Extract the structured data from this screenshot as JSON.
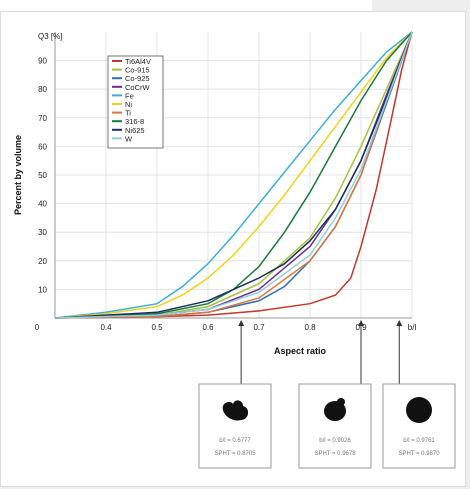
{
  "chart_data": {
    "type": "line",
    "ylabel_top": "Q3 [%]",
    "ylabel": "Percent by volume",
    "xlabel": "Aspect ratio",
    "x_ticks": [
      "0",
      "0.4",
      "0.5",
      "0.6",
      "0.7",
      "0.8",
      "0.9",
      "b/l"
    ],
    "y_ticks": [
      "10",
      "20",
      "30",
      "40",
      "50",
      "60",
      "70",
      "80",
      "90"
    ],
    "xlim": [
      0.3,
      1.0
    ],
    "ylim": [
      0,
      100
    ],
    "grid": true,
    "legend_position": "top-left",
    "series": [
      {
        "name": "Ti6Al4V",
        "color": "#c0392b",
        "x": [
          0.3,
          0.5,
          0.6,
          0.7,
          0.8,
          0.85,
          0.88,
          0.9,
          0.93,
          0.96,
          0.98,
          1.0
        ],
        "y": [
          0,
          0.5,
          1,
          2.5,
          5,
          8,
          14,
          25,
          45,
          70,
          87,
          100
        ]
      },
      {
        "name": "Co-915",
        "color": "#a3c43b",
        "x": [
          0.3,
          0.5,
          0.6,
          0.7,
          0.8,
          0.85,
          0.9,
          0.95,
          1.0
        ],
        "y": [
          0,
          1,
          4,
          12,
          28,
          42,
          60,
          80,
          100
        ]
      },
      {
        "name": "Co-925",
        "color": "#2e6fb5",
        "x": [
          0.3,
          0.5,
          0.6,
          0.7,
          0.75,
          0.8,
          0.85,
          0.9,
          0.95,
          1.0
        ],
        "y": [
          0,
          0.5,
          2,
          6,
          11,
          20,
          32,
          50,
          75,
          100
        ]
      },
      {
        "name": "CoCrW",
        "color": "#6a2c91",
        "x": [
          0.3,
          0.5,
          0.6,
          0.7,
          0.8,
          0.85,
          0.9,
          0.95,
          1.0
        ],
        "y": [
          0,
          1,
          3,
          10,
          25,
          38,
          55,
          78,
          100
        ]
      },
      {
        "name": "Fe",
        "color": "#3ab0d8",
        "x": [
          0.3,
          0.4,
          0.5,
          0.55,
          0.6,
          0.65,
          0.7,
          0.75,
          0.8,
          0.85,
          0.9,
          0.95,
          1.0
        ],
        "y": [
          0,
          2,
          5,
          11,
          19,
          29,
          40,
          51,
          62,
          73,
          83,
          93,
          100
        ]
      },
      {
        "name": "Ni",
        "color": "#f1d21c",
        "x": [
          0.3,
          0.4,
          0.5,
          0.55,
          0.6,
          0.65,
          0.7,
          0.75,
          0.8,
          0.85,
          0.9,
          0.95,
          1.0
        ],
        "y": [
          0,
          1.5,
          4,
          8,
          14,
          22,
          32,
          43,
          55,
          67,
          79,
          91,
          100
        ]
      },
      {
        "name": "Ti",
        "color": "#e0743a",
        "x": [
          0.3,
          0.5,
          0.6,
          0.7,
          0.8,
          0.85,
          0.9,
          0.95,
          1.0
        ],
        "y": [
          0,
          0.5,
          2,
          7,
          20,
          32,
          50,
          76,
          100
        ]
      },
      {
        "name": "316-8",
        "color": "#1a7a3a",
        "x": [
          0.3,
          0.5,
          0.6,
          0.65,
          0.7,
          0.75,
          0.8,
          0.85,
          0.9,
          0.95,
          1.0
        ],
        "y": [
          0,
          1.5,
          5,
          10,
          18,
          30,
          44,
          60,
          76,
          90,
          100
        ]
      },
      {
        "name": "Ni625",
        "color": "#1b2f5e",
        "x": [
          0.3,
          0.5,
          0.6,
          0.7,
          0.75,
          0.8,
          0.85,
          0.9,
          0.95,
          1.0
        ],
        "y": [
          0,
          2,
          6,
          14,
          19,
          27,
          38,
          55,
          77,
          100
        ]
      },
      {
        "name": "W",
        "color": "#8fd0e0",
        "x": [
          0.3,
          0.5,
          0.6,
          0.7,
          0.8,
          0.85,
          0.9,
          0.95,
          1.0
        ],
        "y": [
          0,
          1,
          3,
          9,
          22,
          35,
          52,
          76,
          100
        ]
      }
    ],
    "samples": [
      {
        "marker_x": 0.665,
        "line1": "b/l = 0.6777",
        "line2": "SPHT = 0.8705",
        "shape": "irregular"
      },
      {
        "marker_x": 0.9,
        "line1": "b/l = 0.9026",
        "line2": "SPHT = 0.9678",
        "shape": "near-round"
      },
      {
        "marker_x": 0.975,
        "line1": "b/l = 0.9761",
        "line2": "SPHT = 0.9870",
        "shape": "round"
      }
    ]
  }
}
